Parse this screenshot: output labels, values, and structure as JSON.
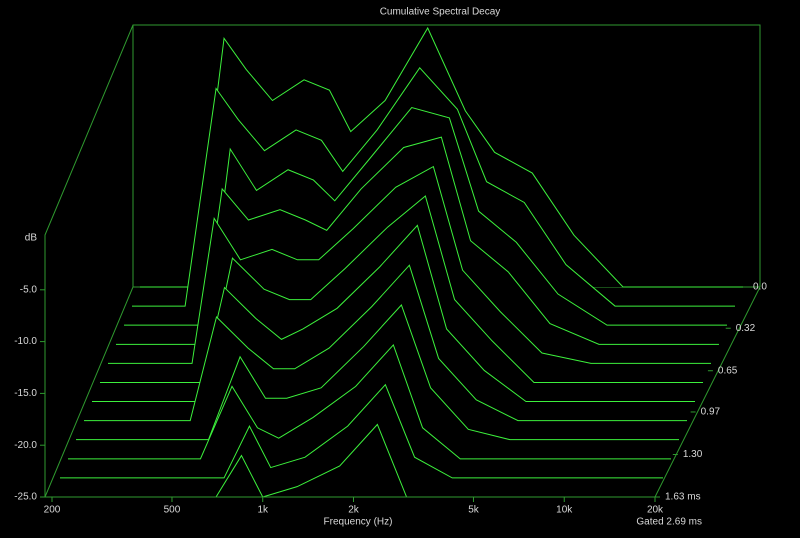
{
  "chart_data": {
    "type": "waterfall",
    "title": "Cumulative Spectral Decay",
    "x_label": "Frequency (Hz)",
    "y_label": "dB",
    "gate_label": "Gated 2.69 ms",
    "log_x": true,
    "color": "#3cf03c",
    "xlim": [
      200,
      20000
    ],
    "ylim": [
      -25,
      0
    ],
    "zlim": [
      0,
      1.63
    ],
    "xticks": [
      200,
      500,
      {
        "value": 1000,
        "label": "1k"
      },
      {
        "value": 2000,
        "label": "2k"
      },
      {
        "value": 5000,
        "label": "5k"
      },
      {
        "value": 10000,
        "label": "10k"
      },
      {
        "value": 20000,
        "label": "20k"
      }
    ],
    "yticks": [
      {
        "value": -5,
        "label": "-5.0"
      },
      {
        "value": -10,
        "label": "-10.0"
      },
      {
        "value": -15,
        "label": "-15.0"
      },
      {
        "value": -20,
        "label": "-20.0"
      },
      {
        "value": -25,
        "label": "-25.0"
      }
    ],
    "zticks": [
      {
        "value": 0,
        "label": "0.0"
      },
      0.32,
      0.65,
      0.97,
      {
        "value": 1.3,
        "label": "1.30"
      },
      {
        "value": 1.63,
        "label": "1.63 ms"
      }
    ],
    "x": [
      200,
      300,
      380,
      450,
      550,
      700,
      850,
      1000,
      1300,
      1800,
      2400,
      3000,
      4000,
      5500,
      8000,
      20000
    ],
    "series": [
      {
        "time": 0,
        "values": [
          -25,
          -25,
          -1,
          -4,
          -7,
          -5,
          -6,
          -10,
          -7,
          0,
          -8,
          -12,
          -14,
          -20,
          -25,
          -25
        ]
      },
      {
        "time": 0.148,
        "values": [
          -25,
          -25,
          -4,
          -7,
          -10,
          -8,
          -9,
          -12,
          -8,
          -2,
          -6,
          -13,
          -15,
          -21,
          -25,
          -25
        ]
      },
      {
        "time": 0.296,
        "values": [
          -25,
          -25,
          -25,
          -8,
          -12,
          -10,
          -11,
          -13,
          -9,
          -4,
          -5,
          -14,
          -17,
          -22,
          -25,
          -25
        ]
      },
      {
        "time": 0.445,
        "values": [
          -25,
          -25,
          -25,
          -10,
          -13,
          -12,
          -13,
          -14,
          -10,
          -6,
          -5,
          -15,
          -18,
          -23,
          -25,
          -25
        ]
      },
      {
        "time": 0.593,
        "values": [
          -25,
          -25,
          -25,
          -11,
          -15,
          -14,
          -15,
          -15,
          -12,
          -8,
          -6,
          -16,
          -20,
          -24,
          -25,
          -25
        ]
      },
      {
        "time": 0.741,
        "values": [
          -25,
          -25,
          -25,
          -25,
          -13,
          -16,
          -17,
          -17,
          -14,
          -10,
          -7,
          -17,
          -21,
          -25,
          -25,
          -25
        ]
      },
      {
        "time": 0.889,
        "values": [
          -25,
          -25,
          -25,
          -25,
          -14,
          -17,
          -19,
          -18,
          -16,
          -12,
          -8,
          -18,
          -22,
          -25,
          -25,
          -25
        ]
      },
      {
        "time": 1.037,
        "values": [
          -25,
          -25,
          -25,
          -25,
          -15,
          -18,
          -20,
          -20,
          -18,
          -14,
          -10,
          -19,
          -23,
          -25,
          -25,
          -25
        ]
      },
      {
        "time": 1.185,
        "values": [
          -25,
          -25,
          -25,
          -25,
          -25,
          -17,
          -21,
          -21,
          -20,
          -16,
          -12,
          -20,
          -24,
          -25,
          -25,
          -25
        ]
      },
      {
        "time": 1.334,
        "values": [
          -25,
          -25,
          -25,
          -25,
          -25,
          -18,
          -22,
          -23,
          -21,
          -18,
          -14,
          -22,
          -25,
          -25,
          -25,
          -25
        ]
      },
      {
        "time": 1.482,
        "values": [
          -25,
          -25,
          -25,
          -25,
          -25,
          -25,
          -20,
          -24,
          -23,
          -20,
          -16,
          -23,
          -25,
          -25,
          -25,
          -25
        ]
      },
      {
        "time": 1.63,
        "values": [
          -25,
          -25,
          -25,
          -25,
          -25,
          -25,
          -21,
          -25,
          -24,
          -22,
          -18,
          -25,
          -25,
          -25,
          -25,
          -25
        ]
      }
    ]
  }
}
